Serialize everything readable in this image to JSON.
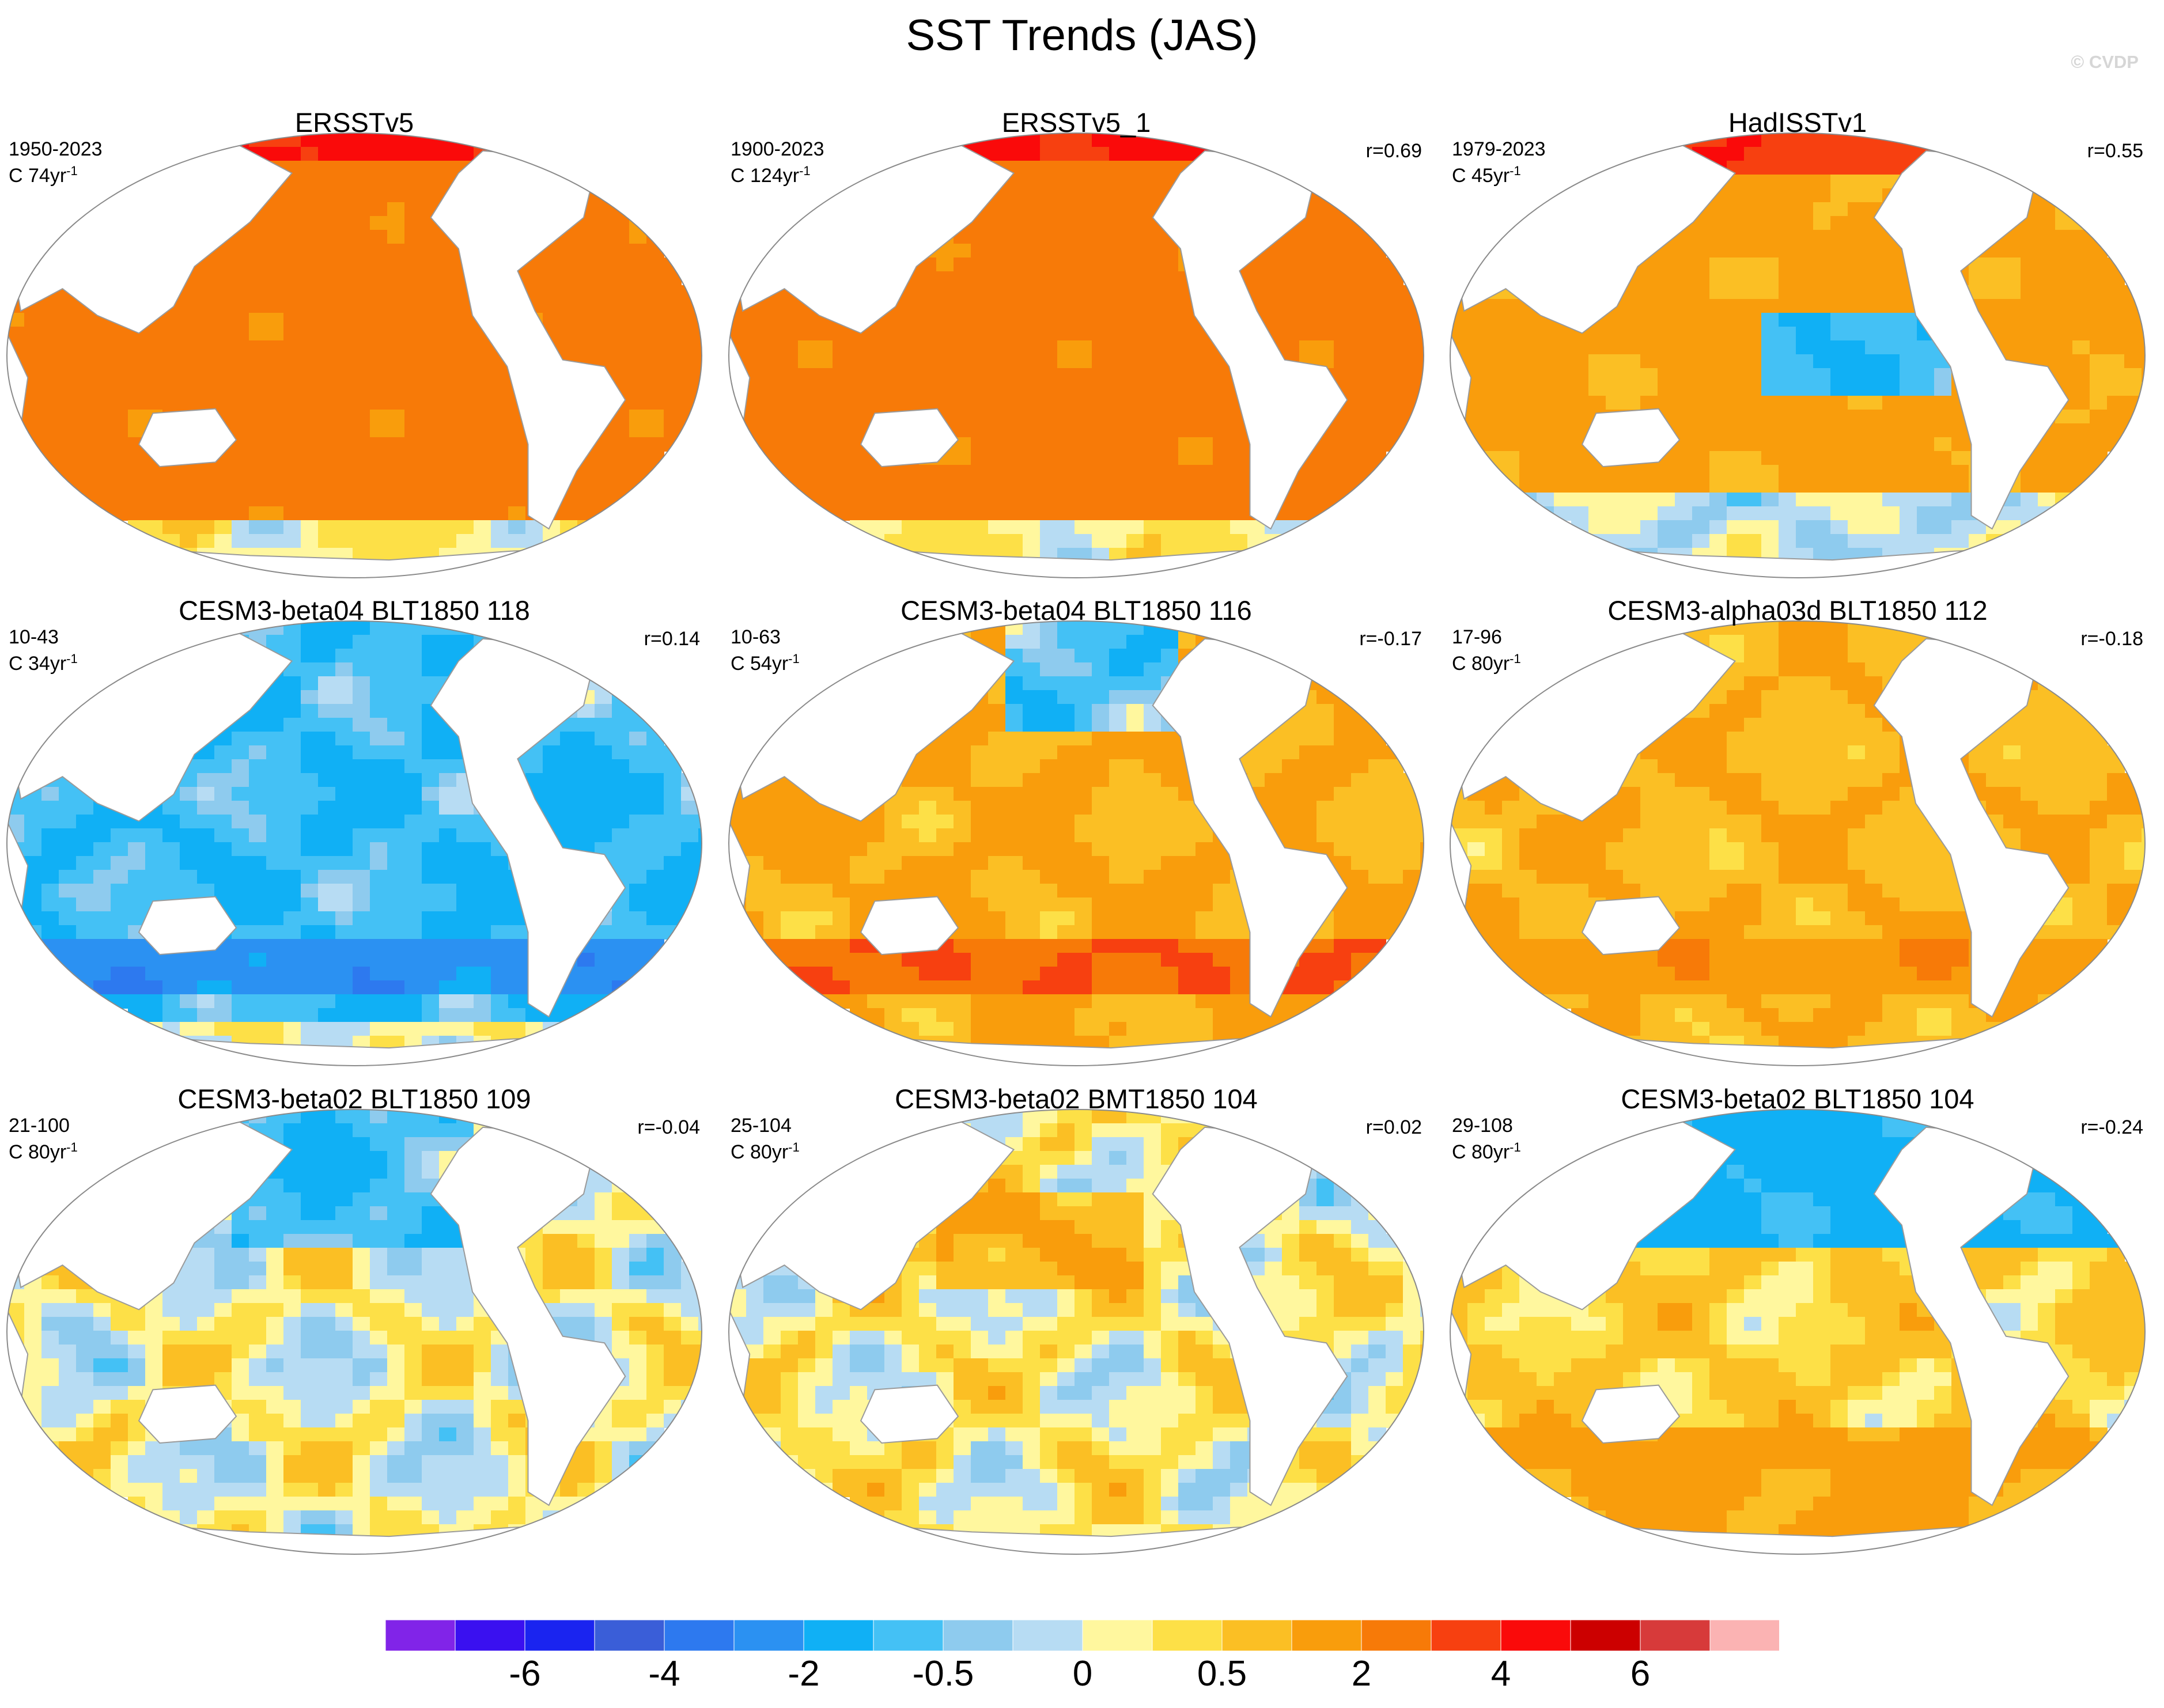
{
  "title": "SST Trends (JAS)",
  "watermark": "© CVDP",
  "chart_data": {
    "type": "heatmap",
    "projection": "Robinson (Pacific-centered)",
    "variable": "Sea surface temperature linear trend, July-August-September",
    "panels": [
      {
        "title": "ERSSTv5",
        "period": "1950-2023",
        "scale_value": "C 74yr",
        "scale_exp": "-1",
        "corr": "",
        "pattern": "uniform-warming"
      },
      {
        "title": "ERSSTv5_1",
        "period": "1900-2023",
        "scale_value": "C 124yr",
        "scale_exp": "-1",
        "corr": "r=0.69",
        "pattern": "uniform-warming"
      },
      {
        "title": "HadISSTv1",
        "period": "1979-2023",
        "scale_value": "C 45yr",
        "scale_exp": "-1",
        "corr": "r=0.55",
        "pattern": "la-nina-like"
      },
      {
        "title": "CESM3-beta04 BLT1850 118",
        "period": "10-43",
        "scale_value": "C 34yr",
        "scale_exp": "-1",
        "corr": "r=0.14",
        "pattern": "cooling"
      },
      {
        "title": "CESM3-beta04 BLT1850 116",
        "period": "10-63",
        "scale_value": "C 54yr",
        "scale_exp": "-1",
        "corr": "r=-0.17",
        "pattern": "mixed-warm"
      },
      {
        "title": "CESM3-alpha03d BLT1850 112",
        "period": "17-96",
        "scale_value": "C 80yr",
        "scale_exp": "-1",
        "corr": "r=-0.18",
        "pattern": "weak-warm"
      },
      {
        "title": "CESM3-beta02 BLT1850 109",
        "period": "21-100",
        "scale_value": "C 80yr",
        "scale_exp": "-1",
        "corr": "r=-0.04",
        "pattern": "neutral-cool"
      },
      {
        "title": "CESM3-beta02 BMT1850 104",
        "period": "25-104",
        "scale_value": "C 80yr",
        "scale_exp": "-1",
        "corr": "r=0.02",
        "pattern": "neutral"
      },
      {
        "title": "CESM3-beta02 BLT1850 104",
        "period": "29-108",
        "scale_value": "C 80yr",
        "scale_exp": "-1",
        "corr": "r=-0.24",
        "pattern": "north-cool"
      }
    ],
    "colorbar": {
      "colors": [
        "#8124e8",
        "#3a10f0",
        "#1a24f0",
        "#3a5ed8",
        "#2d79ef",
        "#2b91f2",
        "#10b0f5",
        "#44c1f5",
        "#8ecbee",
        "#b7dcf3",
        "#fff79e",
        "#fde047",
        "#fbbf24",
        "#f99d0c",
        "#f77a08",
        "#f74010",
        "#fa0a0a",
        "#cc0000",
        "#d73a3a",
        "#fbb3b3"
      ],
      "labels": [
        "-6",
        "-4",
        "-2",
        "-0.5",
        "0",
        "0.5",
        "2",
        "4",
        "6"
      ],
      "label_boundaries": [
        2,
        4,
        6,
        8,
        10,
        12,
        14,
        16,
        18
      ]
    }
  }
}
